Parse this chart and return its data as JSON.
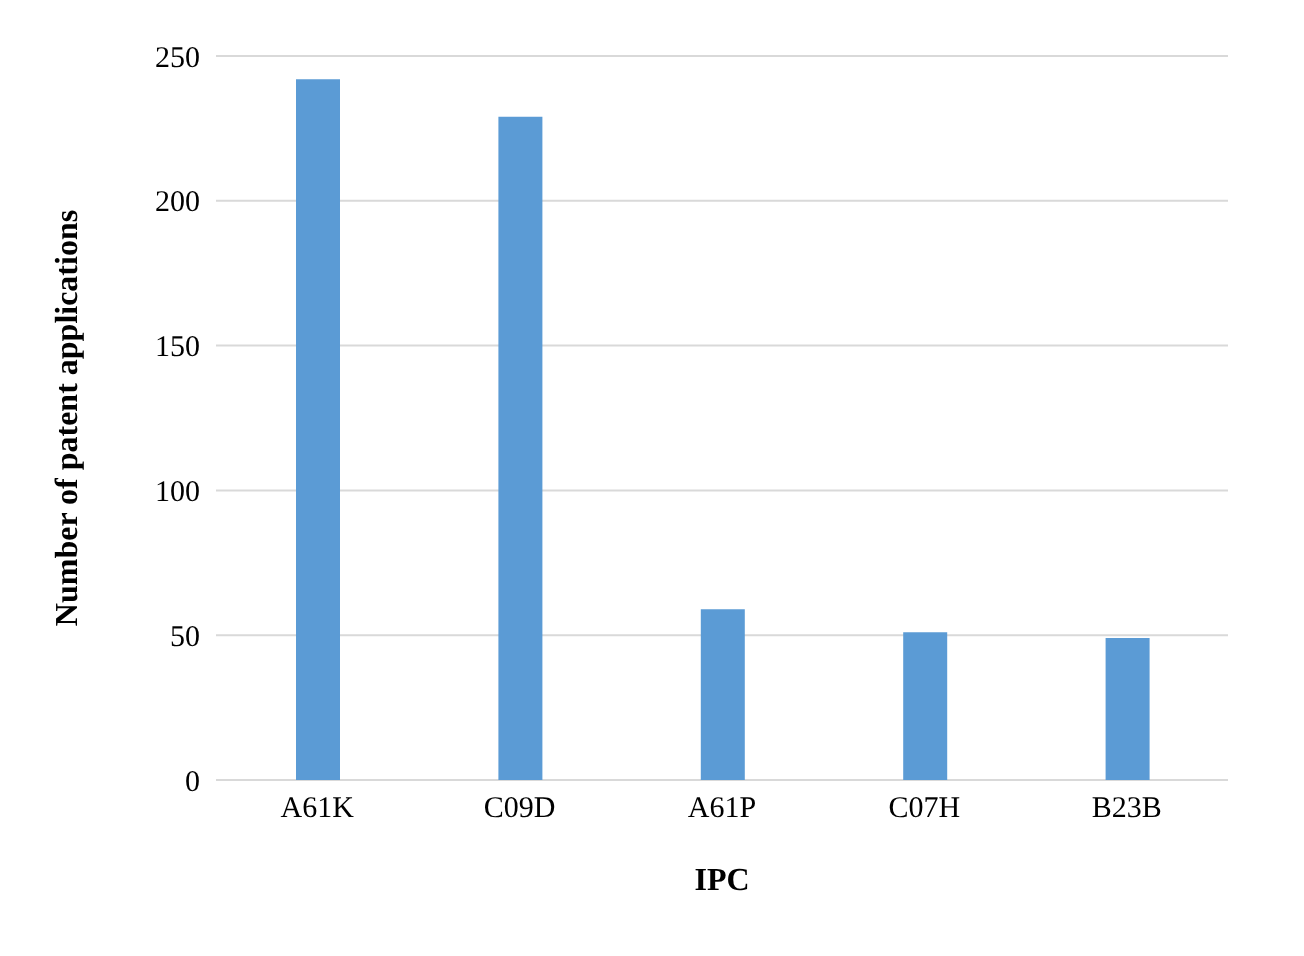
{
  "chart_data": {
    "type": "bar",
    "xlabel": "IPC",
    "ylabel": "Number of patent applications",
    "categories": [
      "A61K",
      "C09D",
      "A61P",
      "C07H",
      "B23B"
    ],
    "values": [
      242,
      229,
      59,
      51,
      49
    ],
    "color": "#5b9bd5",
    "ylim": [
      0,
      250
    ],
    "yticks": [
      0,
      50,
      100,
      150,
      200,
      250
    ],
    "grid": "y"
  }
}
